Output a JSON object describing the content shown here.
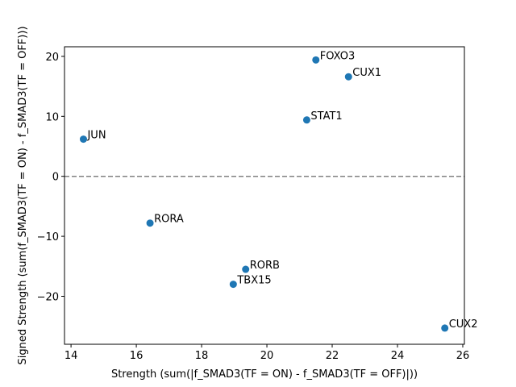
{
  "chart_data": {
    "type": "scatter",
    "title": "",
    "xlabel": "Strength (sum(|f_SMAD3(TF = ON) - f_SMAD3(TF = OFF)|))",
    "ylabel": "Signed Strength (sum(f_SMAD3(TF = ON) - f_SMAD3(TF = OFF)))",
    "xlim": [
      13.8,
      26.05
    ],
    "ylim": [
      -28.0,
      21.6
    ],
    "xticks": [
      14,
      16,
      18,
      20,
      22,
      24,
      26
    ],
    "yticks": [
      -20,
      -10,
      0,
      10,
      20
    ],
    "grid": false,
    "reference_line": {
      "y": 0,
      "style": "dashed",
      "color": "#808080"
    },
    "marker_color": "#1f77b4",
    "points": [
      {
        "label": "FOXO3",
        "x": 21.5,
        "y": 19.4
      },
      {
        "label": "CUX1",
        "x": 22.5,
        "y": 16.6
      },
      {
        "label": "STAT1",
        "x": 21.22,
        "y": 9.4
      },
      {
        "label": "JUN",
        "x": 14.38,
        "y": 6.2
      },
      {
        "label": "RORA",
        "x": 16.42,
        "y": -7.8
      },
      {
        "label": "RORB",
        "x": 19.35,
        "y": -15.5
      },
      {
        "label": "TBX15",
        "x": 18.97,
        "y": -18.0
      },
      {
        "label": "CUX2",
        "x": 25.45,
        "y": -25.3
      }
    ]
  }
}
